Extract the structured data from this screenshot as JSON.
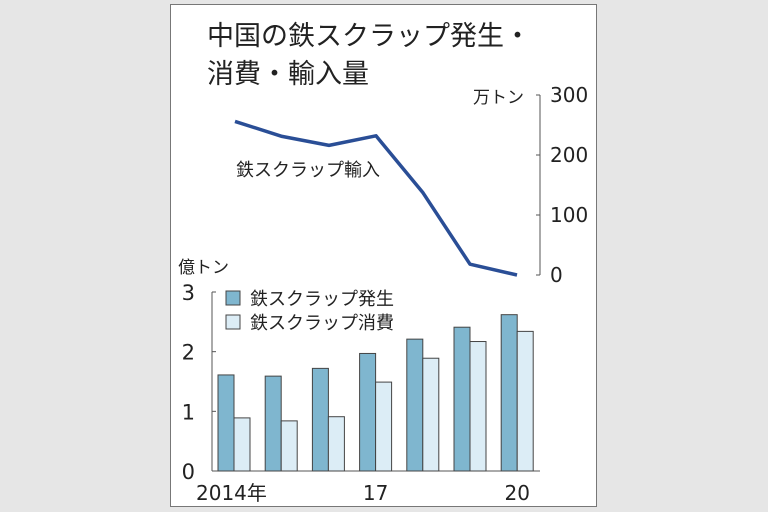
{
  "title_line1": "中国の鉄スクラップ発生・",
  "title_line2": "消費・輸入量",
  "chart_data": [
    {
      "type": "line",
      "x": [
        "2014",
        "2015",
        "2016",
        "2017",
        "2018",
        "2019",
        "2020"
      ],
      "series": [
        {
          "name": "鉄スクラップ輸入",
          "values": [
            256,
            231,
            216,
            232,
            137,
            18,
            0
          ],
          "color": "#2a4e96"
        }
      ],
      "ylabel": "万トン",
      "ylim": [
        0,
        300
      ],
      "yticks": [
        "0",
        "100",
        "200",
        "300"
      ],
      "axis_side": "right"
    },
    {
      "type": "bar",
      "categories": [
        "2014",
        "2015",
        "2016",
        "2017",
        "2018",
        "2019",
        "2020"
      ],
      "tick_labels": [
        "2014年",
        "",
        "",
        "17",
        "",
        "",
        "20"
      ],
      "series": [
        {
          "name": "鉄スクラップ発生",
          "values": [
            1.61,
            1.59,
            1.72,
            1.97,
            2.21,
            2.41,
            2.62
          ],
          "color": "#7fb6cf"
        },
        {
          "name": "鉄スクラップ消費",
          "values": [
            0.89,
            0.84,
            0.91,
            1.49,
            1.89,
            2.17,
            2.34
          ],
          "color": "#dcedf6"
        }
      ],
      "ylabel": "億トン",
      "ylim": [
        0,
        3
      ],
      "yticks": [
        "0",
        "1",
        "2",
        "3"
      ],
      "legend": "top-left"
    }
  ]
}
